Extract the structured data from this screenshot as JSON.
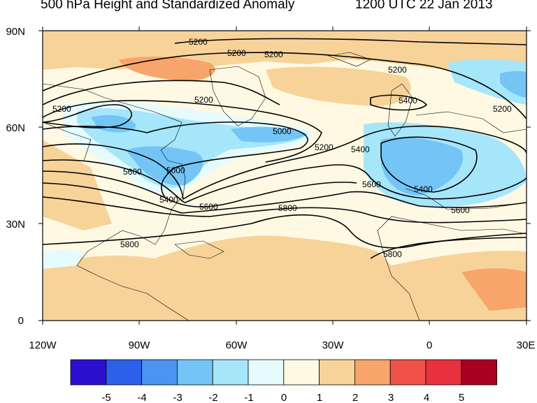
{
  "title": "500 hPa Height and Standardized Anomaly",
  "datetime": "1200 UTC 22 Jan 2013",
  "lat_labels": [
    "90N",
    "60N",
    "30N",
    "0"
  ],
  "lon_labels": [
    "120W",
    "90W",
    "60W",
    "30W",
    "0",
    "30E"
  ],
  "colorbar": {
    "labels": [
      "-5",
      "-4",
      "-3",
      "-2",
      "-1",
      "0",
      "1",
      "2",
      "3",
      "4",
      "5"
    ],
    "colors": [
      "#2a0fcf",
      "#2e5fe8",
      "#4c93f2",
      "#74c5f6",
      "#a6e6fb",
      "#e6fbfd",
      "#fff9e3",
      "#f7d39a",
      "#f7a56a",
      "#f0524a",
      "#e8313f",
      "#a8001e"
    ]
  },
  "contour_labels": [
    "5200",
    "5200",
    "5200",
    "5200",
    "5200",
    "5200",
    "5200",
    "5400",
    "5000",
    "5000",
    "5200",
    "5400",
    "5600",
    "5400",
    "5600",
    "5400",
    "5600",
    "5800",
    "5600",
    "5800",
    "5800"
  ]
}
